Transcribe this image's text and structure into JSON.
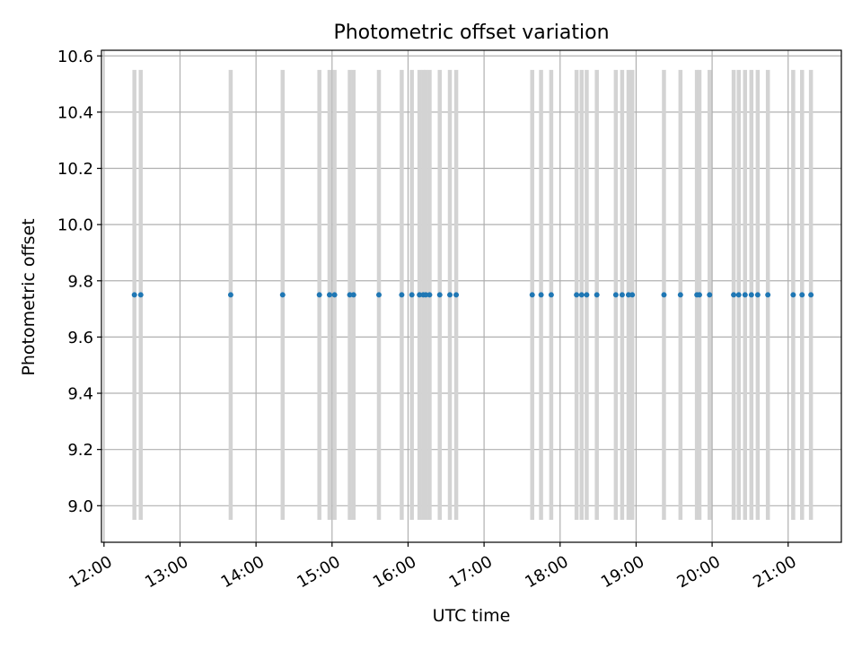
{
  "chart_data": {
    "type": "scatter",
    "title": "Photometric offset variation",
    "xlabel": "UTC time",
    "ylabel": "Photometric offset",
    "xlim": [
      "11:58",
      "21:42"
    ],
    "ylim": [
      8.87,
      10.62
    ],
    "x_ticks": [
      "12:00",
      "13:00",
      "14:00",
      "15:00",
      "16:00",
      "17:00",
      "18:00",
      "19:00",
      "20:00",
      "21:00"
    ],
    "y_ticks": [
      9.0,
      9.2,
      9.4,
      9.6,
      9.8,
      10.0,
      10.2,
      10.4,
      10.6
    ],
    "y_tick_labels": [
      "9.0",
      "9.2",
      "9.4",
      "9.6",
      "9.8",
      "10.0",
      "10.2",
      "10.4",
      "10.6"
    ],
    "grid": true,
    "colors": {
      "points": "#1f77b4",
      "error_bars": "#d3d3d3",
      "grid": "#b0b0b0"
    },
    "error_bar_range": [
      8.95,
      10.55
    ],
    "series": [
      {
        "x": [
          "12:24",
          "12:29",
          "13:40",
          "14:21",
          "14:50",
          "14:58",
          "15:02",
          "15:14",
          "15:17",
          "15:37",
          "15:55",
          "16:03",
          "16:09",
          "16:12",
          "16:14",
          "16:17",
          "16:25",
          "16:33",
          "16:38",
          "17:38",
          "17:45",
          "17:53",
          "18:13",
          "18:17",
          "18:21",
          "18:29",
          "18:44",
          "18:49",
          "18:54",
          "18:57",
          "19:22",
          "19:35",
          "19:48",
          "19:50",
          "19:58",
          "20:17",
          "20:21",
          "20:26",
          "20:31",
          "20:36",
          "20:44",
          "21:04",
          "21:11",
          "21:18"
        ],
        "y": [
          9.75,
          9.75,
          9.75,
          9.75,
          9.75,
          9.75,
          9.75,
          9.75,
          9.75,
          9.75,
          9.75,
          9.75,
          9.75,
          9.75,
          9.75,
          9.75,
          9.75,
          9.75,
          9.75,
          9.75,
          9.75,
          9.75,
          9.75,
          9.75,
          9.75,
          9.75,
          9.75,
          9.75,
          9.75,
          9.75,
          9.75,
          9.75,
          9.75,
          9.75,
          9.75,
          9.75,
          9.75,
          9.75,
          9.75,
          9.75,
          9.75,
          9.75,
          9.75,
          9.75
        ]
      }
    ]
  }
}
